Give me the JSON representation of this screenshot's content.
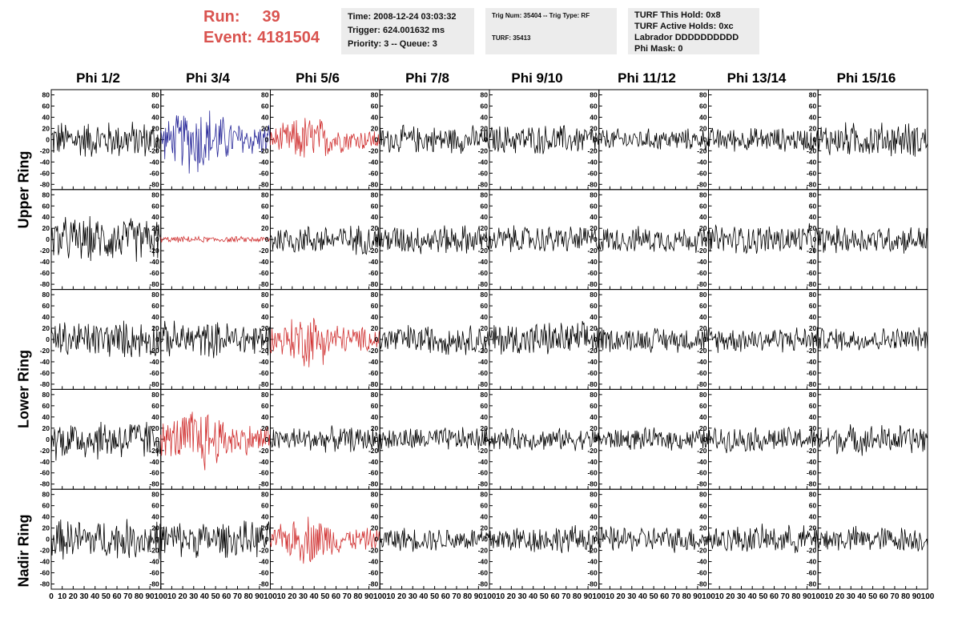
{
  "header": {
    "run_label": "Run:",
    "run_value": "39",
    "event_label": "Event:",
    "event_value": "4181504",
    "time": "Time: 2008-12-24 03:03:32",
    "trigger": "Trigger: 624.001632 ms",
    "priority": "Priority: 3 -- Queue: 3",
    "trig_num": "Trig Num: 35404 -- Trig Type: RF",
    "turf_num": "TURF: 35413",
    "turf_hold": "TURF This Hold: 0x8",
    "turf_active": "TURF Active Holds: 0xc",
    "labrador": "Labrador DDDDDDDDDD",
    "phi_mask": "Phi Mask: 0"
  },
  "columns": [
    "Phi 1/2",
    "Phi 3/4",
    "Phi 5/6",
    "Phi 7/8",
    "Phi 9/10",
    "Phi 11/12",
    "Phi 13/14",
    "Phi 15/16"
  ],
  "ring_labels": [
    "Upper Ring",
    "Lower Ring",
    "Nadir Ring"
  ],
  "chart_data": {
    "type": "line",
    "description_free": true,
    "grid": false,
    "x_ticks": [
      0,
      10,
      20,
      30,
      40,
      50,
      60,
      70,
      80,
      90,
      100
    ],
    "y_ticks": [
      -80,
      -60,
      -40,
      -20,
      0,
      20,
      40,
      60,
      80
    ],
    "xlim": [
      0,
      100
    ],
    "ylim": [
      -85,
      85
    ],
    "rows": 5,
    "cols": 8,
    "colors": {
      "normal": "#000000",
      "blue": "#2a2a9a",
      "red": "#d03030"
    },
    "panels": [
      [
        {
          "color": "normal",
          "amp": 38
        },
        {
          "color": "blue",
          "amp": 60
        },
        {
          "color": "red",
          "amp": 40
        },
        {
          "color": "normal",
          "amp": 28
        },
        {
          "color": "normal",
          "amp": 30
        },
        {
          "color": "normal",
          "amp": 22
        },
        {
          "color": "normal",
          "amp": 24
        },
        {
          "color": "normal",
          "amp": 35
        }
      ],
      [
        {
          "color": "normal",
          "amp": 45
        },
        {
          "color": "red",
          "amp": 6
        },
        {
          "color": "normal",
          "amp": 30
        },
        {
          "color": "normal",
          "amp": 30
        },
        {
          "color": "normal",
          "amp": 28
        },
        {
          "color": "normal",
          "amp": 26
        },
        {
          "color": "normal",
          "amp": 30
        },
        {
          "color": "normal",
          "amp": 28
        }
      ],
      [
        {
          "color": "normal",
          "amp": 38
        },
        {
          "color": "normal",
          "amp": 36
        },
        {
          "color": "red",
          "amp": 45
        },
        {
          "color": "normal",
          "amp": 30
        },
        {
          "color": "normal",
          "amp": 35
        },
        {
          "color": "normal",
          "amp": 25
        },
        {
          "color": "normal",
          "amp": 26
        },
        {
          "color": "normal",
          "amp": 24
        }
      ],
      [
        {
          "color": "normal",
          "amp": 42
        },
        {
          "color": "red",
          "amp": 55
        },
        {
          "color": "normal",
          "amp": 25
        },
        {
          "color": "normal",
          "amp": 24
        },
        {
          "color": "normal",
          "amp": 22
        },
        {
          "color": "normal",
          "amp": 22
        },
        {
          "color": "normal",
          "amp": 25
        },
        {
          "color": "normal",
          "amp": 30
        }
      ],
      [
        {
          "color": "normal",
          "amp": 40
        },
        {
          "color": "normal",
          "amp": 36
        },
        {
          "color": "red",
          "amp": 40
        },
        {
          "color": "normal",
          "amp": 24
        },
        {
          "color": "normal",
          "amp": 28
        },
        {
          "color": "normal",
          "amp": 26
        },
        {
          "color": "normal",
          "amp": 28
        },
        {
          "color": "normal",
          "amp": 26
        }
      ]
    ]
  }
}
